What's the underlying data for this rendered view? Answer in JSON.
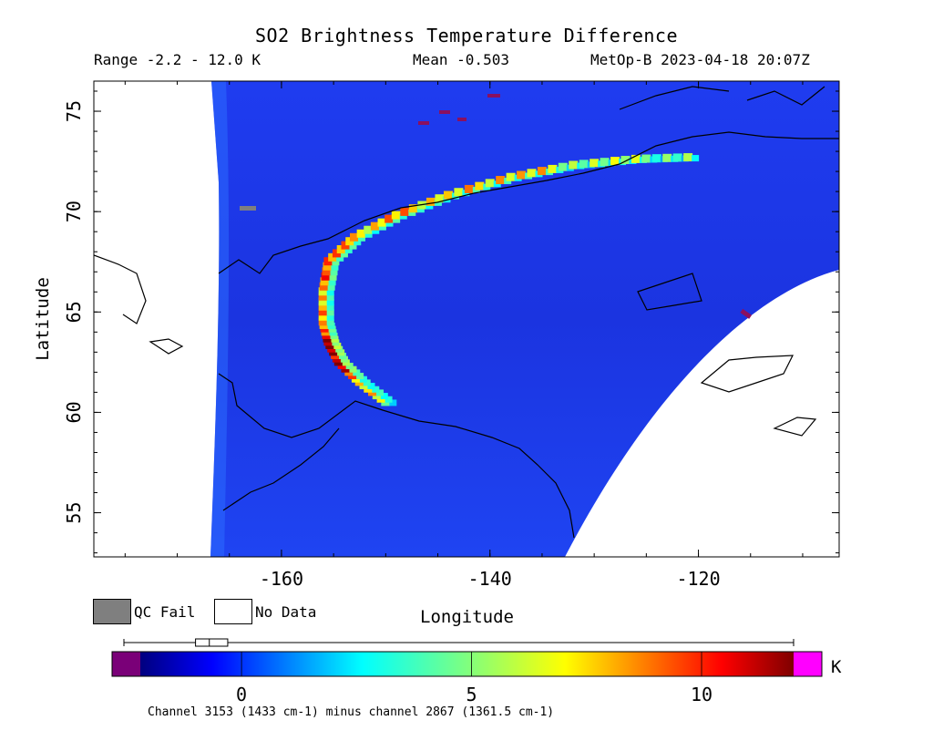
{
  "header": {
    "title": "SO2 Brightness Temperature Difference",
    "range_text": "Range -2.2 - 12.0 K",
    "mean_text": "Mean -0.503",
    "satellite_text": "MetOp-B 2023-04-18 20:07Z"
  },
  "axes": {
    "xlabel": "Longitude",
    "ylabel": "Latitude",
    "x_ticks": [
      {
        "label": "-160",
        "value": -160
      },
      {
        "label": "-140",
        "value": -140
      },
      {
        "label": "-120",
        "value": -120
      }
    ],
    "y_ticks": [
      {
        "label": "75",
        "value": 75
      },
      {
        "label": "70",
        "value": 70
      },
      {
        "label": "65",
        "value": 65
      },
      {
        "label": "60",
        "value": 60
      },
      {
        "label": "55",
        "value": 55
      }
    ],
    "x_range": [
      -178,
      -106.5
    ],
    "y_range": [
      52.8,
      76.5
    ]
  },
  "legend": {
    "qc_fail_label": "QC Fail",
    "no_data_label": "No Data",
    "qc_fail_color": "#7f7f7f",
    "no_data_color": "#ffffff"
  },
  "colorbar": {
    "unit": "K",
    "range": [
      -2.2,
      12.0
    ],
    "ticks": [
      {
        "label": "0",
        "value": 0
      },
      {
        "label": "5",
        "value": 5
      },
      {
        "label": "10",
        "value": 10
      }
    ],
    "under_color": "#7a0078",
    "over_color": "#ff00ff",
    "box_range": [
      -1.0,
      -0.3
    ],
    "box_median": -0.7,
    "whisker_range": [
      -2.2,
      12.0
    ]
  },
  "footnote": "Channel 3153 (1433 cm-1) minus channel 2867 (1361.5 cm-1)",
  "chart_data": {
    "type": "heatmap",
    "title": "SO2 Brightness Temperature Difference",
    "xlabel": "Longitude",
    "ylabel": "Latitude",
    "xlim": [
      -178,
      -106.5
    ],
    "ylim": [
      52.8,
      76.5
    ],
    "value_range": [
      -2.2,
      12.0
    ],
    "mean": -0.503,
    "unit": "K",
    "plume_track": [
      {
        "lon": -150.0,
        "lat": 60.5,
        "value": 6
      },
      {
        "lon": -152.5,
        "lat": 61.5,
        "value": 8
      },
      {
        "lon": -154.5,
        "lat": 62.5,
        "value": 11
      },
      {
        "lon": -155.5,
        "lat": 63.5,
        "value": 12
      },
      {
        "lon": -156.0,
        "lat": 64.5,
        "value": 8
      },
      {
        "lon": -156.0,
        "lat": 66.0,
        "value": 8
      },
      {
        "lon": -155.5,
        "lat": 67.5,
        "value": 10
      },
      {
        "lon": -153.0,
        "lat": 68.7,
        "value": 7
      },
      {
        "lon": -149.0,
        "lat": 69.8,
        "value": 8
      },
      {
        "lon": -144.0,
        "lat": 70.8,
        "value": 7
      },
      {
        "lon": -138.0,
        "lat": 71.7,
        "value": 8
      },
      {
        "lon": -132.0,
        "lat": 72.3,
        "value": 6
      },
      {
        "lon": -126.0,
        "lat": 72.6,
        "value": 5
      },
      {
        "lon": -120.0,
        "lat": 72.7,
        "value": 4
      }
    ]
  }
}
